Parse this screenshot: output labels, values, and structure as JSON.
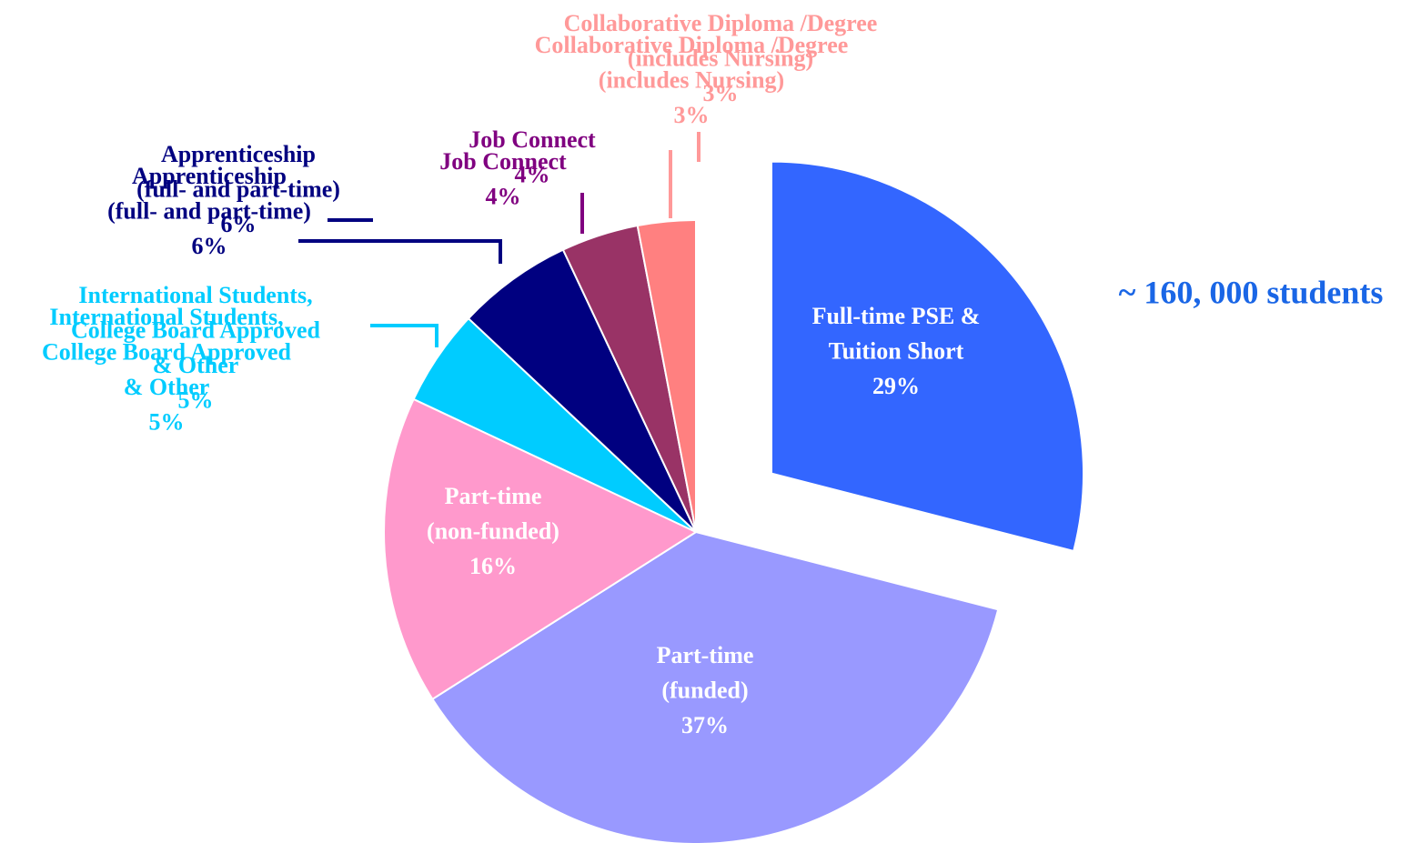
{
  "chart_data": {
    "type": "pie",
    "categories": [
      [
        "Full-time PSE &",
        "Tuition Short"
      ],
      [
        "Part-time",
        "(funded)"
      ],
      [
        "Part-time",
        "(non-funded)"
      ],
      [
        "International Students,",
        "College Board Approved",
        "& Other"
      ],
      [
        "Apprenticeship",
        "(full- and part-time)"
      ],
      [
        "Job Connect"
      ],
      [
        "Collaborative  Diploma /Degree",
        "(includes Nursing)"
      ]
    ],
    "values": [
      29,
      37,
      16,
      5,
      6,
      4,
      3
    ],
    "value_labels": [
      "29%",
      "37%",
      "16%",
      "5%",
      "6%",
      "4%",
      "3%"
    ],
    "colors": [
      "#3366ff",
      "#9999ff",
      "#ff99cc",
      "#00ccff",
      "#000080",
      "#993366",
      "#ff8080"
    ],
    "label_colors": [
      "#ffffff",
      "#ffffff",
      "#ffffff",
      "#00ccff",
      "#000080",
      "#800080",
      "#ff9999"
    ],
    "annotation": "~ 160, 000 students",
    "annotation_color": "#1a66e6"
  }
}
